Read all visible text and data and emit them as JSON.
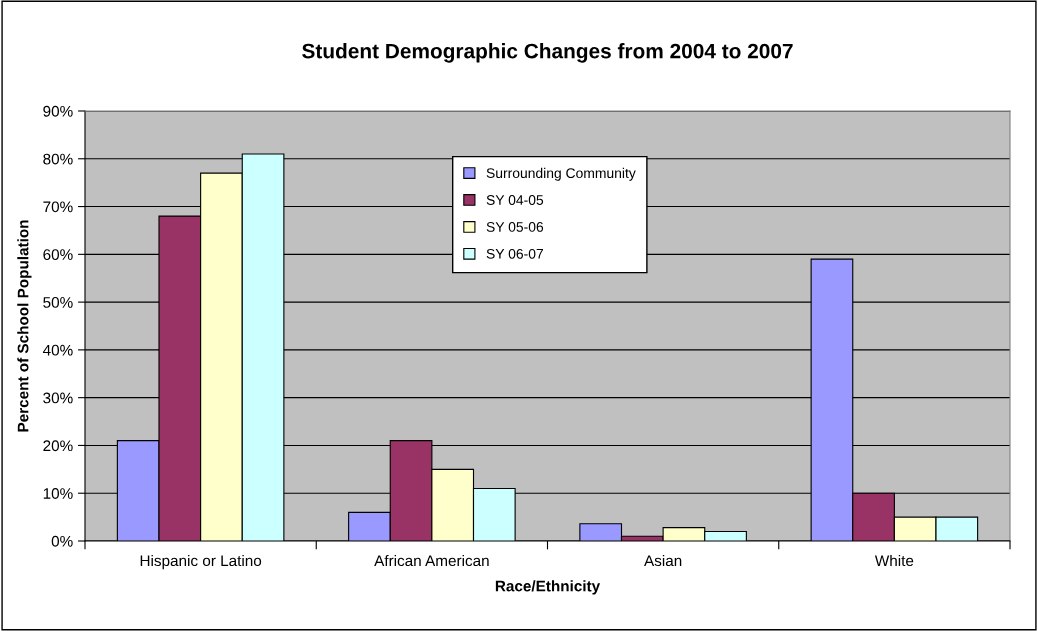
{
  "chart_data": {
    "type": "bar",
    "title": "Student Demographic Changes from 2004 to 2007",
    "xlabel": "Race/Ethnicity",
    "ylabel": "Percent of School Population",
    "categories": [
      "Hispanic or Latino",
      "African American",
      "Asian",
      "White"
    ],
    "series": [
      {
        "name": "Surrounding Community",
        "color": "#9999ff",
        "values": [
          21,
          6,
          3.6,
          59
        ]
      },
      {
        "name": "SY 04-05",
        "color": "#993366",
        "values": [
          68,
          21,
          1,
          10
        ]
      },
      {
        "name": "SY 05-06",
        "color": "#ffffcc",
        "values": [
          77,
          15,
          2.8,
          5
        ]
      },
      {
        "name": "SY 06-07",
        "color": "#ccffff",
        "values": [
          81,
          11,
          2,
          5
        ]
      }
    ],
    "ylim": [
      0,
      90
    ],
    "yticks": [
      {
        "value": 0,
        "label": "0%"
      },
      {
        "value": 10,
        "label": "10%"
      },
      {
        "value": 20,
        "label": "20%"
      },
      {
        "value": 30,
        "label": "30%"
      },
      {
        "value": 40,
        "label": "40%"
      },
      {
        "value": 50,
        "label": "50%"
      },
      {
        "value": 60,
        "label": "60%"
      },
      {
        "value": 70,
        "label": "70%"
      },
      {
        "value": 80,
        "label": "80%"
      },
      {
        "value": 90,
        "label": "90%"
      }
    ],
    "grid": "y",
    "legend": "top center"
  }
}
